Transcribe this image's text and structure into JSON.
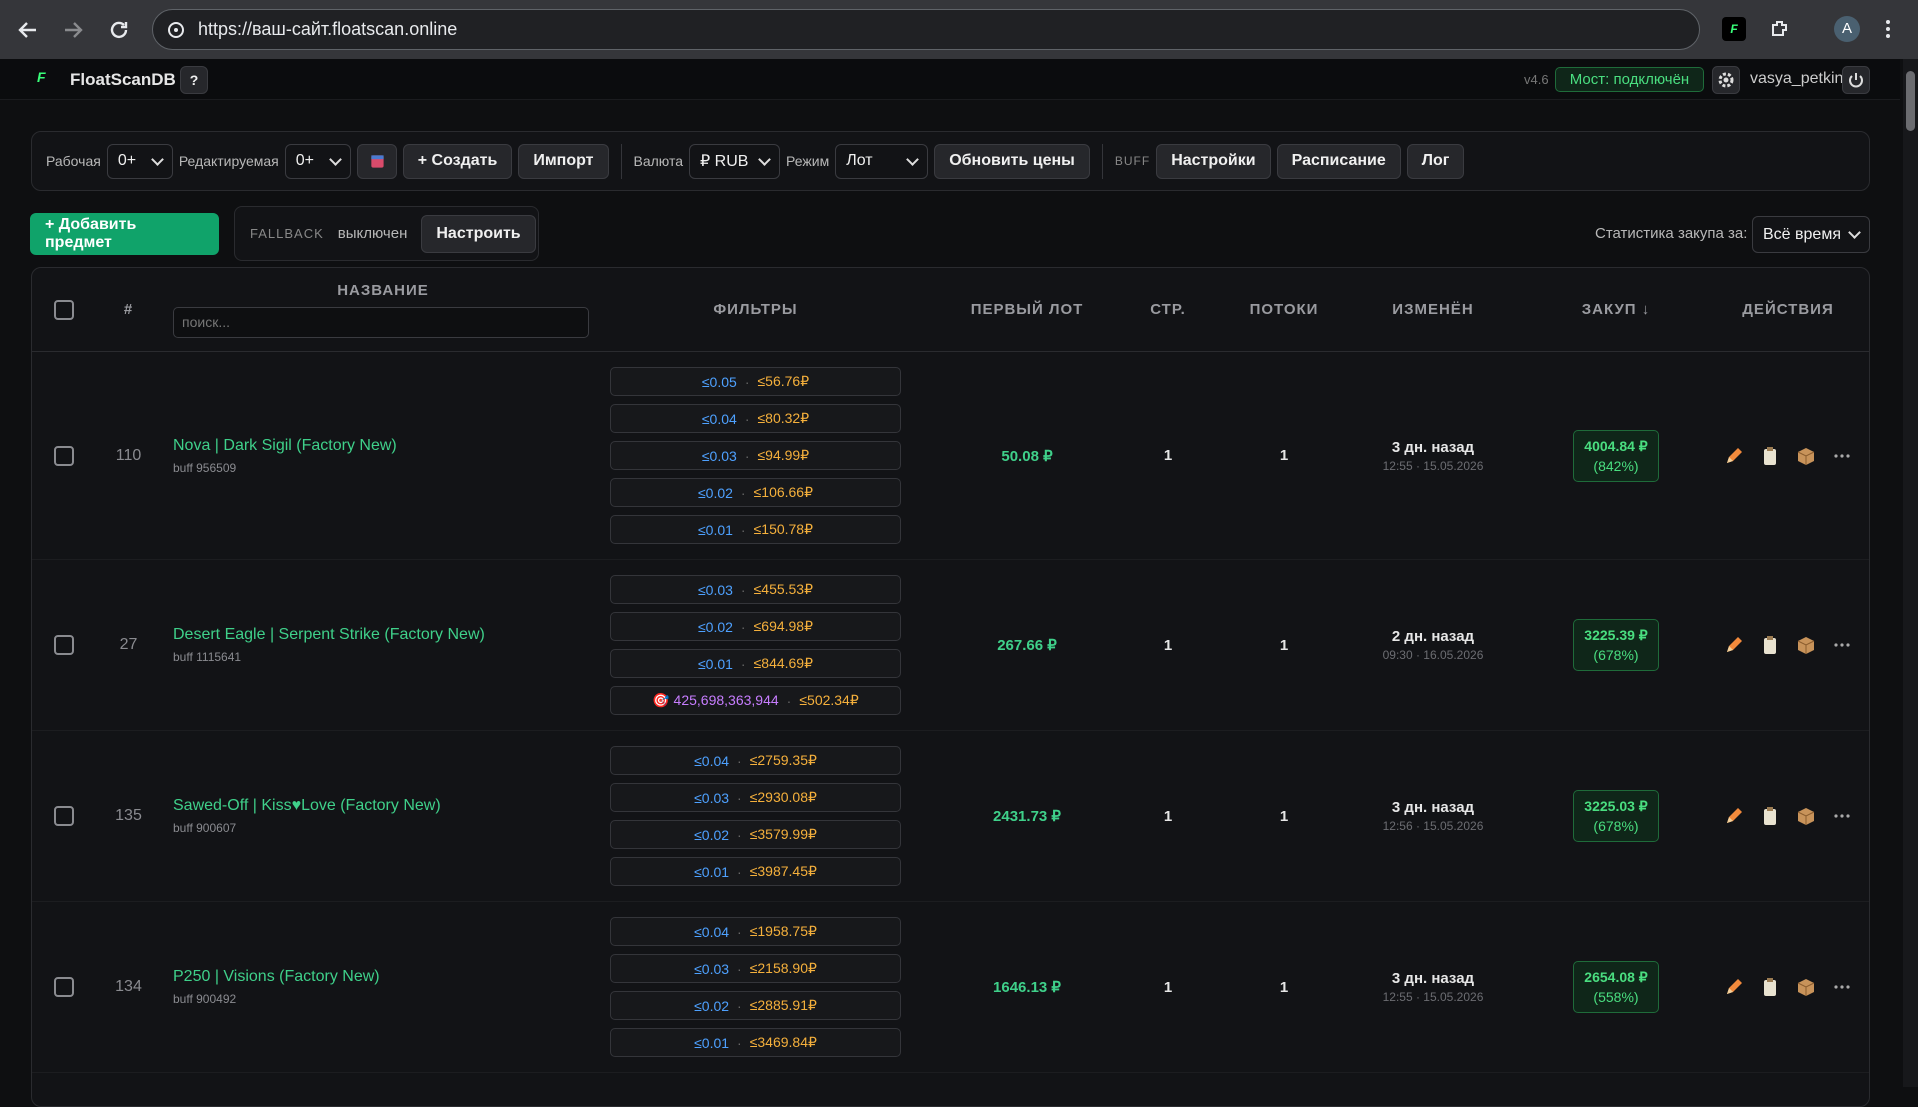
{
  "browser": {
    "url": "https://ваш-сайт.floatscan.online",
    "profile": "A",
    "extension": "F"
  },
  "header": {
    "logo": "F",
    "brand": "FloatScanDB",
    "help": "?",
    "version": "v4.6",
    "bridge": "Мост: подключён",
    "user": "vasya_petkin"
  },
  "toolbar": {
    "working_label": "Рабочая",
    "working_value": "0+",
    "editing_label": "Редактируемая",
    "editing_value": "0+",
    "create": "+ Создать",
    "import": "Импорт",
    "currency_label": "Валюта",
    "currency_value": "₽ RUB",
    "mode_label": "Режим",
    "mode_value": "Лот",
    "refresh": "Обновить цены",
    "buff_label": "BUFF",
    "settings": "Настройки",
    "schedule": "Расписание",
    "log": "Лог"
  },
  "actions": {
    "add": "+ Добавить предмет",
    "fallback_label": "FALLBACK",
    "fallback_state": "выключен",
    "configure": "Настроить",
    "stats_label": "Статистика закупа за:",
    "stats_value": "Всё время"
  },
  "table": {
    "headers": [
      "#",
      "НАЗВАНИЕ",
      "ФИЛЬТРЫ",
      "ПЕРВЫЙ ЛОТ",
      "СТР.",
      "ПОТОКИ",
      "ИЗМЕНЁН",
      "ЗАКУП ↓",
      "ДЕЙСТВИЯ"
    ],
    "search_placeholder": "поиск...",
    "rows": [
      {
        "id": "110",
        "name": "Nova | Dark Sigil (Factory New)",
        "buff": "buff 956509",
        "filters": [
          {
            "float": "≤0.05",
            "price": "≤56.76₽"
          },
          {
            "float": "≤0.04",
            "price": "≤80.32₽"
          },
          {
            "float": "≤0.03",
            "price": "≤94.99₽"
          },
          {
            "float": "≤0.02",
            "price": "≤106.66₽"
          },
          {
            "float": "≤0.01",
            "price": "≤150.78₽"
          }
        ],
        "first_lot": "50.08 ₽",
        "pages": "1",
        "threads": "1",
        "changed": "3 дн. назад",
        "changed_at": "12:55 · 15.05.2026",
        "purchase": "4004.84 ₽",
        "purchase_pct": "(842%)"
      },
      {
        "id": "27",
        "name": "Desert Eagle | Serpent Strike (Factory New)",
        "buff": "buff 1115641",
        "filters": [
          {
            "float": "≤0.03",
            "price": "≤455.53₽"
          },
          {
            "float": "≤0.02",
            "price": "≤694.98₽"
          },
          {
            "float": "≤0.01",
            "price": "≤844.69₽"
          },
          {
            "pattern": "🎯 425,698,363,944",
            "price": "≤502.34₽"
          }
        ],
        "first_lot": "267.66 ₽",
        "pages": "1",
        "threads": "1",
        "changed": "2 дн. назад",
        "changed_at": "09:30 · 16.05.2026",
        "purchase": "3225.39 ₽",
        "purchase_pct": "(678%)"
      },
      {
        "id": "135",
        "name": "Sawed-Off | Kiss♥Love (Factory New)",
        "buff": "buff 900607",
        "filters": [
          {
            "float": "≤0.04",
            "price": "≤2759.35₽"
          },
          {
            "float": "≤0.03",
            "price": "≤2930.08₽"
          },
          {
            "float": "≤0.02",
            "price": "≤3579.99₽"
          },
          {
            "float": "≤0.01",
            "price": "≤3987.45₽"
          }
        ],
        "first_lot": "2431.73 ₽",
        "pages": "1",
        "threads": "1",
        "changed": "3 дн. назад",
        "changed_at": "12:56 · 15.05.2026",
        "purchase": "3225.03 ₽",
        "purchase_pct": "(678%)"
      },
      {
        "id": "134",
        "name": "P250 | Visions (Factory New)",
        "buff": "buff 900492",
        "filters": [
          {
            "float": "≤0.04",
            "price": "≤1958.75₽"
          },
          {
            "float": "≤0.03",
            "price": "≤2158.90₽"
          },
          {
            "float": "≤0.02",
            "price": "≤2885.91₽"
          },
          {
            "float": "≤0.01",
            "price": "≤3469.84₽"
          }
        ],
        "first_lot": "1646.13 ₽",
        "pages": "1",
        "threads": "1",
        "changed": "3 дн. назад",
        "changed_at": "12:55 · 15.05.2026",
        "purchase": "2654.08 ₽",
        "purchase_pct": "(558%)"
      }
    ]
  }
}
